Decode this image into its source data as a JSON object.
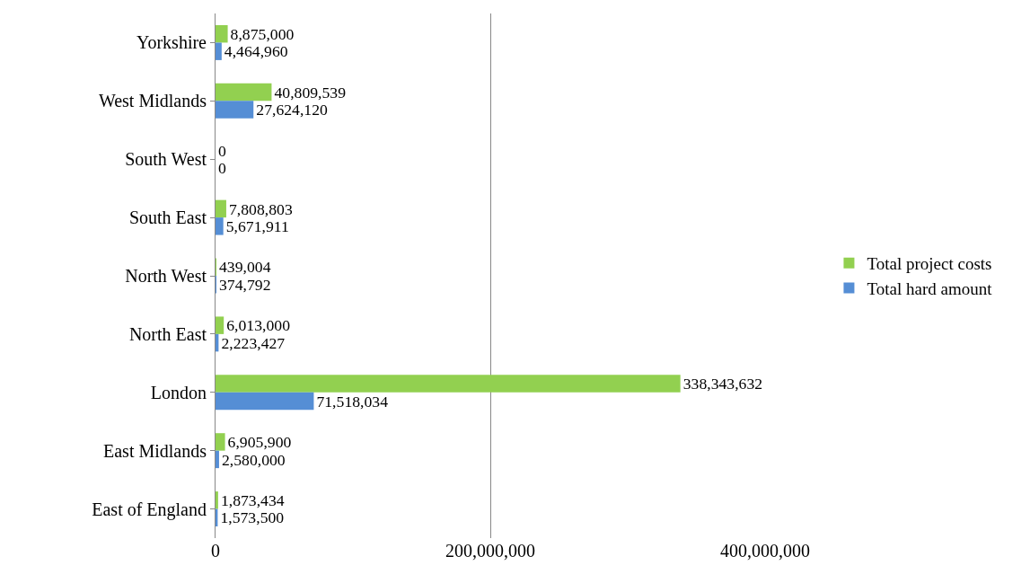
{
  "chart_data": {
    "type": "bar",
    "orientation": "horizontal",
    "categories": [
      "Yorkshire",
      "West Midlands",
      "South West",
      "South East",
      "North West",
      "North East",
      "London",
      "East Midlands",
      "East of England"
    ],
    "series": [
      {
        "name": "Total project costs",
        "color": "#92d050",
        "values": [
          8875000,
          40809539,
          0,
          7808803,
          439004,
          6013000,
          338343632,
          6905900,
          1873434
        ],
        "value_labels": [
          "8,875,000",
          "40,809,539",
          "0",
          "7,808,803",
          "439,004",
          "6,013,000",
          "338,343,632",
          "6,905,900",
          "1,873,434"
        ]
      },
      {
        "name": "Total hard amount",
        "color": "#558ed5",
        "values": [
          4464960,
          27624120,
          0,
          5671911,
          374792,
          2223427,
          71518034,
          2580000,
          1573500
        ],
        "value_labels": [
          "4,464,960",
          "27,624,120",
          "0",
          "5,671,911",
          "374,792",
          "2,223,427",
          "71,518,034",
          "2,580,000",
          "1,573,500"
        ]
      }
    ],
    "xlim": [
      0,
      400000000
    ],
    "xticks": [
      {
        "value": 0,
        "label": "0"
      },
      {
        "value": 200000000,
        "label": "200,000,000"
      },
      {
        "value": 400000000,
        "label": "400,000,000"
      }
    ],
    "grid": "x",
    "legend": "right"
  }
}
